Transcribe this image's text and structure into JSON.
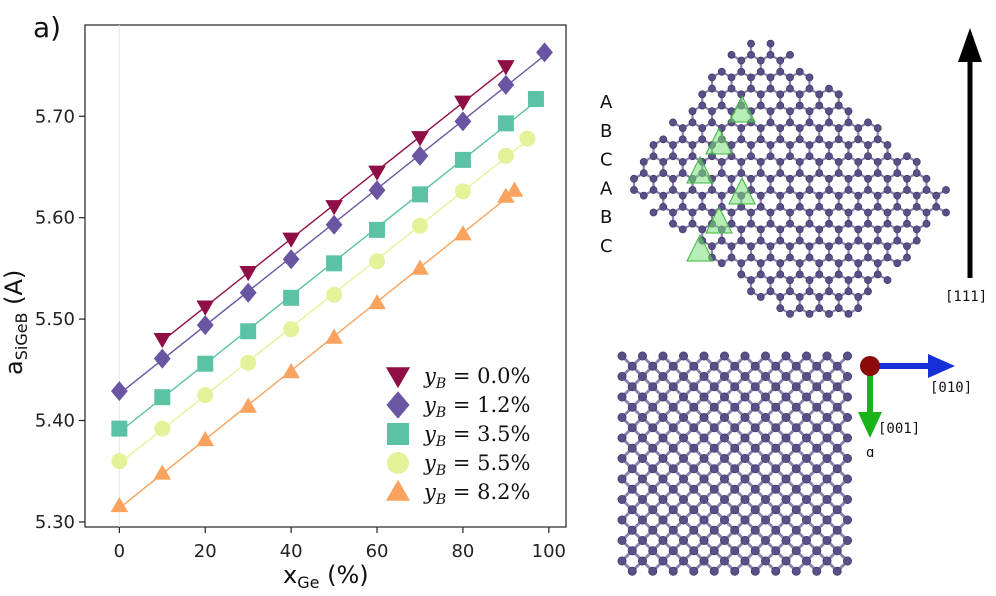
{
  "panel_label": "a)",
  "chart_data": {
    "type": "scatter",
    "title": "",
    "xlabel": {
      "main": "x",
      "sub": "Ge",
      "unit": " (%)"
    },
    "ylabel": {
      "main": "a",
      "sub": "SiGeB",
      "unit": " (A)"
    },
    "xlim": [
      -8,
      104
    ],
    "ylim": [
      5.295,
      5.79
    ],
    "xticks": [
      0,
      20,
      40,
      60,
      80,
      100
    ],
    "xtick_labels": [
      "0",
      "20",
      "40",
      "60",
      "80",
      "100"
    ],
    "yticks": [
      5.3,
      5.4,
      5.5,
      5.6,
      5.7
    ],
    "ytick_labels": [
      "5.30",
      "5.40",
      "5.50",
      "5.60",
      "5.70"
    ],
    "legend_position": "bottom-right",
    "series": [
      {
        "name": "y_B = 0.0%",
        "label_var": "y",
        "label_sub": "B",
        "label_val": " = 0.0%",
        "marker": "triangle-down",
        "color": "#8e0e45",
        "x": [
          10,
          20,
          30,
          40,
          50,
          60,
          70,
          80,
          90
        ],
        "y": [
          5.48,
          5.512,
          5.546,
          5.579,
          5.611,
          5.645,
          5.679,
          5.714,
          5.749
        ]
      },
      {
        "name": "y_B = 1.2%",
        "label_var": "y",
        "label_sub": "B",
        "label_val": " = 1.2%",
        "marker": "diamond",
        "color": "#6a55a3",
        "x": [
          0,
          10,
          20,
          30,
          40,
          50,
          60,
          70,
          80,
          90,
          99
        ],
        "y": [
          5.429,
          5.461,
          5.494,
          5.526,
          5.559,
          5.593,
          5.627,
          5.661,
          5.695,
          5.731,
          5.763
        ]
      },
      {
        "name": "y_B = 3.5%",
        "label_var": "y",
        "label_sub": "B",
        "label_val": " = 3.5%",
        "marker": "square",
        "color": "#5bc2a5",
        "x": [
          0,
          10,
          20,
          30,
          40,
          50,
          60,
          70,
          80,
          90,
          97
        ],
        "y": [
          5.392,
          5.423,
          5.456,
          5.488,
          5.521,
          5.555,
          5.588,
          5.623,
          5.657,
          5.693,
          5.717
        ]
      },
      {
        "name": "y_B = 5.5%",
        "label_var": "y",
        "label_sub": "B",
        "label_val": " = 5.5%",
        "marker": "circle",
        "color": "#e4f29a",
        "x": [
          0,
          10,
          20,
          30,
          40,
          50,
          60,
          70,
          80,
          90,
          95
        ],
        "y": [
          5.36,
          5.392,
          5.425,
          5.457,
          5.49,
          5.524,
          5.557,
          5.592,
          5.626,
          5.661,
          5.678
        ]
      },
      {
        "name": "y_B = 8.2%",
        "label_var": "y",
        "label_sub": "B",
        "label_val": " = 8.2%",
        "marker": "triangle-up",
        "color": "#f9a35f",
        "x": [
          0,
          10,
          20,
          30,
          40,
          50,
          60,
          70,
          80,
          90,
          92
        ],
        "y": [
          5.316,
          5.348,
          5.381,
          5.414,
          5.448,
          5.482,
          5.516,
          5.55,
          5.584,
          5.621,
          5.627
        ]
      }
    ]
  },
  "structure": {
    "stacking_labels": [
      "A",
      "B",
      "C",
      "A",
      "B",
      "C"
    ],
    "direction_111": "[111]",
    "direction_010": "[010]",
    "direction_001": "[001]",
    "axis_glyph": "ɑ",
    "atom_color": "#5a4f86",
    "bond_color": "#8a82ad",
    "highlight_color": "#7be07b",
    "arrow_x_color": "#1530d8",
    "arrow_z_color": "#19b219",
    "origin_color": "#8b0a0a"
  }
}
